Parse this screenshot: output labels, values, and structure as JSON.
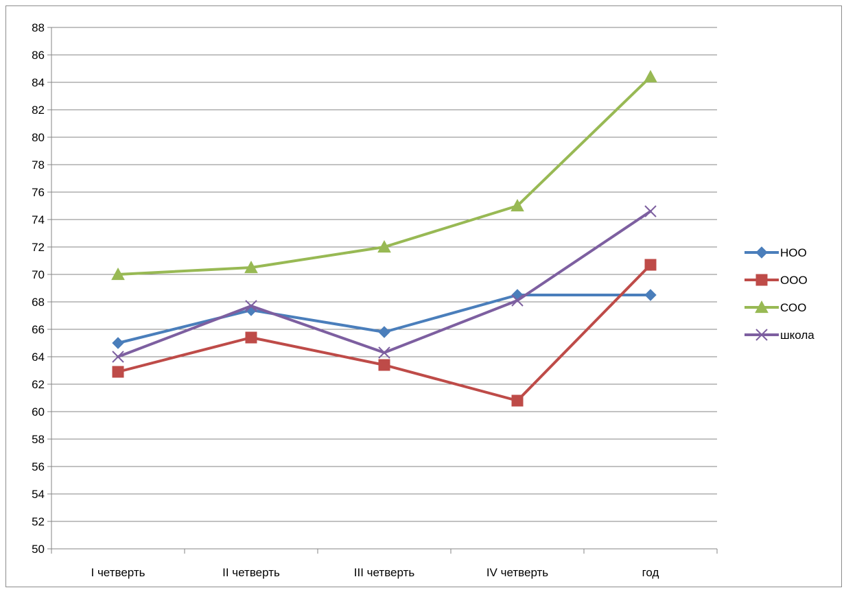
{
  "chart_data": {
    "type": "line",
    "title": "",
    "xlabel": "",
    "ylabel": "",
    "categories": [
      "I четверть",
      "II четверть",
      "III четверть",
      "IV четверть",
      "год"
    ],
    "ylim": [
      50,
      88
    ],
    "y_ticks": [
      "50",
      "52",
      "54",
      "56",
      "58",
      "60",
      "62",
      "64",
      "66",
      "68",
      "70",
      "72",
      "74",
      "76",
      "78",
      "80",
      "82",
      "84",
      "86",
      "88"
    ],
    "grid": "horizontal",
    "legend_position": "right",
    "series": [
      {
        "name": "НОО",
        "values": [
          65.0,
          67.4,
          65.8,
          68.5,
          68.5
        ],
        "color": "#4a7ebb",
        "marker": "diamond"
      },
      {
        "name": "ООО",
        "values": [
          62.9,
          65.4,
          63.4,
          60.8,
          70.7
        ],
        "color": "#be4b48",
        "marker": "square"
      },
      {
        "name": "СОО",
        "values": [
          70.0,
          70.5,
          72.0,
          75.0,
          84.4
        ],
        "color": "#98b954",
        "marker": "triangle"
      },
      {
        "name": "школа",
        "values": [
          64.0,
          67.7,
          64.3,
          68.1,
          74.6
        ],
        "color": "#7d5fa0",
        "marker": "x"
      }
    ]
  }
}
